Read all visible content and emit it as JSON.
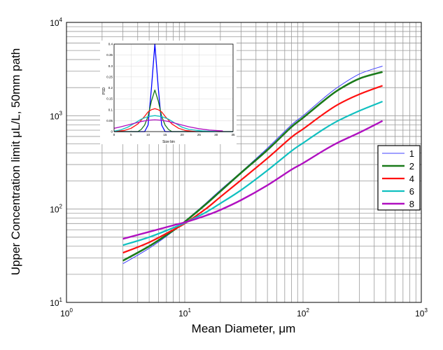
{
  "chart_data": [
    {
      "type": "line",
      "x_scale": "log",
      "y_scale": "log",
      "xlim": [
        1,
        1000
      ],
      "ylim": [
        10,
        10000
      ],
      "grid": true,
      "xlabel": "Mean Diameter, μm",
      "ylabel": "Upper Concentration limit μL/L, 50mm path",
      "x_ticks": [
        {
          "base": "10",
          "exp": "0"
        },
        {
          "base": "10",
          "exp": "1"
        },
        {
          "base": "10",
          "exp": "2"
        },
        {
          "base": "10",
          "exp": "3"
        }
      ],
      "y_ticks": [
        {
          "base": "10",
          "exp": "1"
        },
        {
          "base": "10",
          "exp": "2"
        },
        {
          "base": "10",
          "exp": "3"
        },
        {
          "base": "10",
          "exp": "4"
        }
      ],
      "legend_position": "right",
      "series": [
        {
          "name": "1",
          "color": "#4040ff",
          "x": [
            3,
            5,
            8,
            10,
            15,
            20,
            30,
            50,
            80,
            100,
            150,
            200,
            300,
            470
          ],
          "y": [
            26,
            38,
            58,
            74,
            115,
            160,
            250,
            450,
            800,
            1000,
            1550,
            2050,
            2800,
            3400
          ]
        },
        {
          "name": "2",
          "color": "#1a7a1a",
          "x": [
            3,
            5,
            8,
            10,
            15,
            20,
            30,
            50,
            80,
            100,
            150,
            200,
            300,
            470
          ],
          "y": [
            28,
            40,
            59,
            73,
            112,
            155,
            245,
            430,
            760,
            950,
            1450,
            1900,
            2500,
            2950
          ]
        },
        {
          "name": "4",
          "color": "#ff1010",
          "x": [
            3,
            5,
            8,
            10,
            15,
            20,
            30,
            50,
            80,
            100,
            150,
            200,
            300,
            470
          ],
          "y": [
            34,
            44,
            60,
            70,
            100,
            135,
            205,
            350,
            590,
            720,
            1050,
            1330,
            1700,
            2100
          ]
        },
        {
          "name": "6",
          "color": "#10c0c0",
          "x": [
            3,
            5,
            8,
            10,
            15,
            20,
            30,
            50,
            80,
            100,
            150,
            200,
            300,
            470
          ],
          "y": [
            41,
            50,
            63,
            71,
            92,
            115,
            160,
            260,
            420,
            510,
            720,
            890,
            1130,
            1420
          ]
        },
        {
          "name": "8",
          "color": "#b010c0",
          "x": [
            3,
            5,
            8,
            10,
            15,
            20,
            30,
            50,
            80,
            100,
            150,
            200,
            300,
            470
          ],
          "y": [
            48,
            57,
            67,
            72,
            85,
            98,
            125,
            180,
            265,
            310,
            425,
            520,
            660,
            880
          ]
        }
      ]
    },
    {
      "type": "line",
      "inset": true,
      "xlim": [
        0,
        35
      ],
      "ylim": [
        0,
        0.4
      ],
      "xlabel": "Size bin",
      "ylabel": "PSD",
      "x_ticks": [
        "0",
        "5",
        "10",
        "15",
        "20",
        "25",
        "30",
        "35"
      ],
      "y_ticks": [
        "0",
        "0.05",
        "0.1",
        "0.15",
        "0.2",
        "0.25",
        "0.3",
        "0.35",
        "0.4"
      ],
      "series": [
        {
          "name": "1",
          "color": "#0000ff",
          "x": [
            0,
            9,
            10,
            11,
            12,
            13,
            14,
            15,
            35
          ],
          "y": [
            0,
            0,
            0.03,
            0.2,
            0.4,
            0.2,
            0.03,
            0,
            0
          ]
        },
        {
          "name": "2",
          "color": "#1a7a1a",
          "x": [
            0,
            7,
            8,
            9,
            10,
            11,
            12,
            13,
            14,
            15,
            16,
            17,
            35
          ],
          "y": [
            0,
            0,
            0.01,
            0.03,
            0.07,
            0.14,
            0.19,
            0.14,
            0.07,
            0.03,
            0.01,
            0,
            0
          ]
        },
        {
          "name": "4",
          "color": "#ff1010",
          "x": [
            0,
            3,
            5,
            7,
            9,
            10,
            11,
            12,
            13,
            14,
            15,
            17,
            19,
            21,
            24
          ],
          "y": [
            0,
            0.005,
            0.015,
            0.035,
            0.07,
            0.09,
            0.1,
            0.105,
            0.1,
            0.09,
            0.07,
            0.035,
            0.015,
            0.005,
            0
          ]
        },
        {
          "name": "6",
          "color": "#10c0c0",
          "x": [
            0,
            2,
            4,
            6,
            8,
            10,
            12,
            14,
            16,
            18,
            20,
            22,
            26,
            30
          ],
          "y": [
            0.002,
            0.008,
            0.02,
            0.038,
            0.057,
            0.069,
            0.073,
            0.069,
            0.057,
            0.038,
            0.02,
            0.01,
            0.003,
            0
          ]
        },
        {
          "name": "8",
          "color": "#b010c0",
          "x": [
            0,
            2,
            4,
            6,
            8,
            10,
            12,
            14,
            16,
            18,
            20,
            22,
            25,
            28,
            32
          ],
          "y": [
            0.015,
            0.022,
            0.03,
            0.038,
            0.046,
            0.052,
            0.054,
            0.052,
            0.046,
            0.038,
            0.03,
            0.022,
            0.013,
            0.007,
            0.003
          ]
        }
      ]
    }
  ]
}
